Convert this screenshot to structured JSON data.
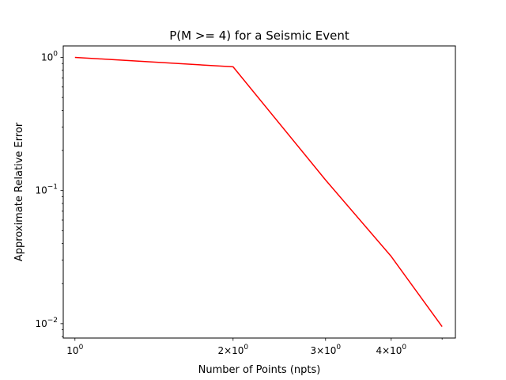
{
  "chart_data": {
    "type": "line",
    "title": "P(M >= 4) for a Seismic Event",
    "xlabel": "Number of Points (npts)",
    "ylabel": "Approximate Relative Error",
    "xscale": "log",
    "yscale": "log",
    "xlim": [
      0.95,
      5.3
    ],
    "ylim": [
      0.0078,
      1.22
    ],
    "grid": false,
    "legend": "none",
    "series": [
      {
        "color": "#ff0000",
        "x": [
          1,
          2,
          3,
          4,
          5
        ],
        "y": [
          1.0,
          0.85,
          0.12,
          0.032,
          0.0095
        ]
      }
    ],
    "x_ticks": [
      {
        "value": 1,
        "base": "10",
        "exp": "0"
      },
      {
        "value": 2,
        "base": "2×10",
        "exp": "0"
      },
      {
        "value": 3,
        "base": "3×10",
        "exp": "0"
      },
      {
        "value": 4,
        "base": "4×10",
        "exp": "0"
      }
    ],
    "y_ticks": [
      {
        "value": 1,
        "base": "10",
        "exp": "0"
      },
      {
        "value": 0.1,
        "base": "10",
        "exp": "−1"
      },
      {
        "value": 0.01,
        "base": "10",
        "exp": "−2"
      }
    ]
  }
}
